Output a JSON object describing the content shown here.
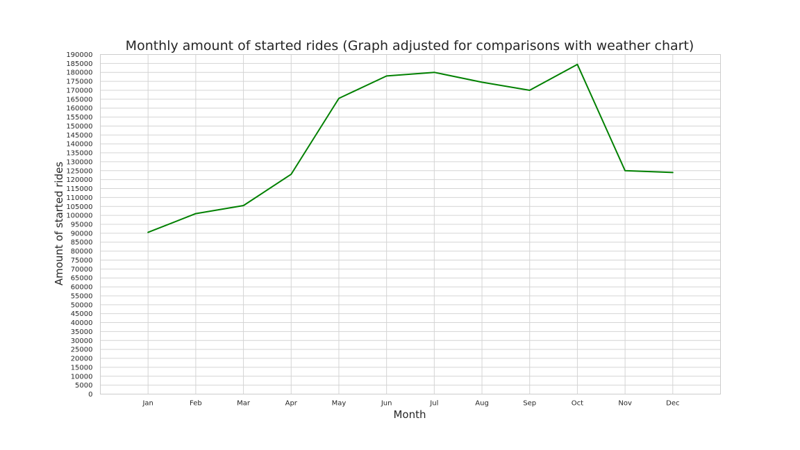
{
  "chart_data": {
    "type": "line",
    "title": "Monthly amount of started rides (Graph adjusted for comparisons with weather chart)",
    "xlabel": "Month",
    "ylabel": "Amount of started rides",
    "categories": [
      "Jan",
      "Feb",
      "Mar",
      "Apr",
      "May",
      "Jun",
      "Jul",
      "Aug",
      "Sep",
      "Oct",
      "Nov",
      "Dec"
    ],
    "series": [
      {
        "values": [
          90500,
          101000,
          105500,
          123000,
          165500,
          178000,
          180000,
          174500,
          170000,
          184500,
          125000,
          124000
        ],
        "color": "#008000"
      }
    ],
    "ylim": [
      0,
      190000
    ],
    "ytick_step": 5000,
    "x_range": [
      0,
      13
    ],
    "grid": true,
    "legend": "none"
  }
}
